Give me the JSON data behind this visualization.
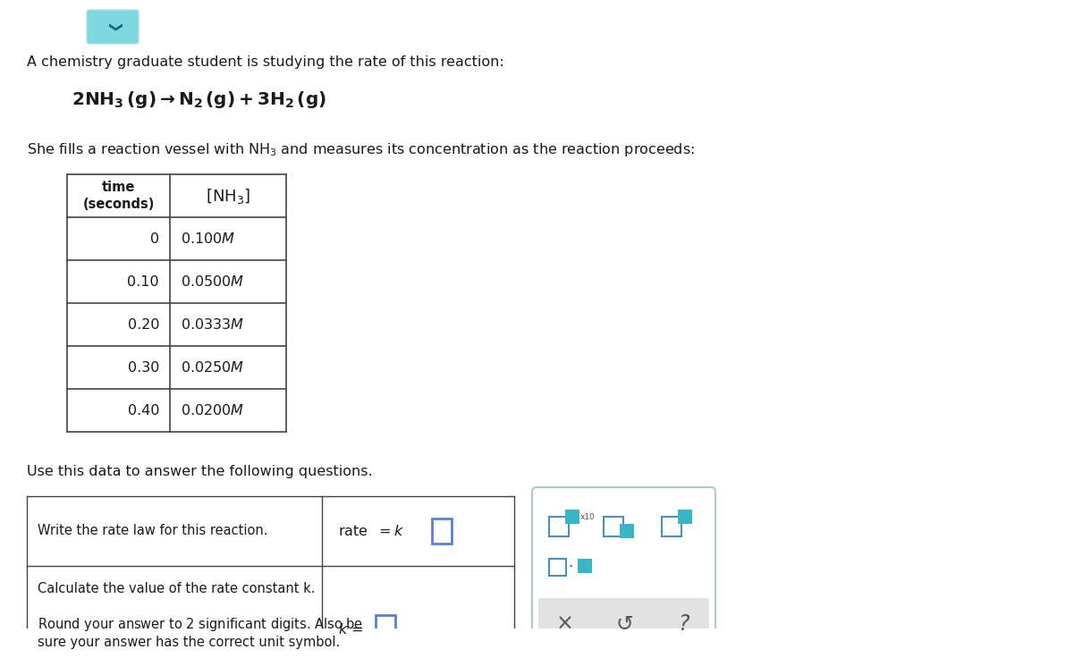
{
  "bg_color": "#ffffff",
  "text_color": "#1a1a1a",
  "intro_text": "A chemistry graduate student is studying the rate of this reaction:",
  "table_times": [
    "0",
    "0.10",
    "0.20",
    "0.30",
    "0.40"
  ],
  "table_conc": [
    "0.100",
    "0.0500",
    "0.0333",
    "0.0250",
    "0.0200"
  ],
  "use_text": "Use this data to answer the following questions.",
  "q1_text": "Write the rate law for this reaction.",
  "q2_text1": "Calculate the value of the rate constant k.",
  "q2_text2": "Round your answer to 2 significant digits. Also be\nsure your answer has the correct unit symbol.",
  "teal_color": "#3ab5c6",
  "teal_light": "#7fd0dc",
  "panel_border": "#aac8d0",
  "chevron_bg": "#7dd8e0",
  "chevron_border": "#aae0e8"
}
